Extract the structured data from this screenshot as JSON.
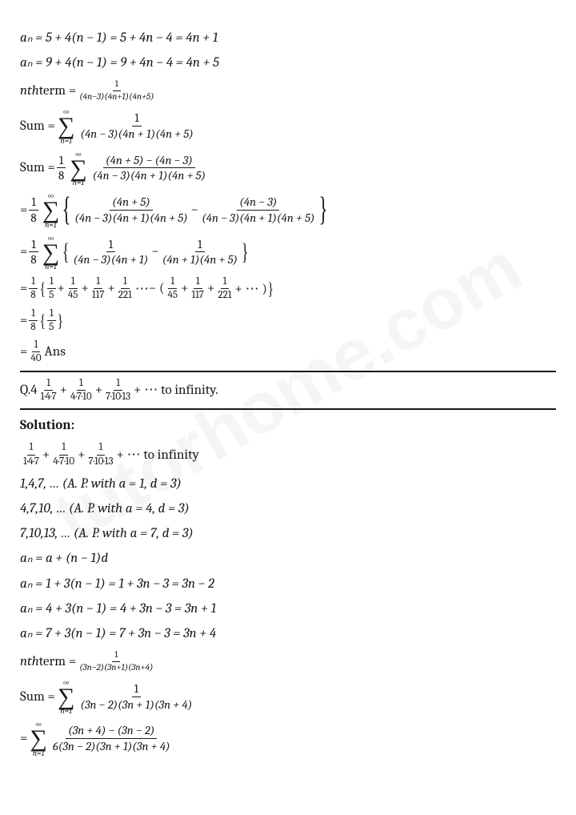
{
  "watermark": "tutorhome.com",
  "t": {
    "l1": "aₙ = 5 + 4(n − 1) = 5 + 4n − 4 = 4n + 1",
    "l2": "aₙ = 9 + 4(n − 1) = 9 + 4n − 4 = 4n + 5",
    "l3_a": "nth",
    "l3_b": " term = ",
    "l3_num": "1",
    "l3_den": "(4n−3)(4n+1)(4n+5)",
    "sum_label": "Sum = ",
    "sum1_num": "1",
    "sum1_den": "(4n − 3)(4n + 1)(4n + 5)",
    "sum2_pre_num": "1",
    "sum2_pre_den": "8",
    "sum2_num": "(4n + 5) − (4n − 3)",
    "sum2_den": "(4n − 3)(4n + 1)(4n + 5)",
    "eq": "= ",
    "s3_f1_num": "(4n + 5)",
    "s3_f1_den": "(4n − 3)(4n + 1)(4n + 5)",
    "minus": " − ",
    "s3_f2_num": "(4n − 3)",
    "s3_f2_den": "(4n − 3)(4n + 1)(4n + 5)",
    "s4_f1_num": "1",
    "s4_f1_den": "(4n − 3)(4n + 1)",
    "s4_f2_num": "1",
    "s4_f2_den": "(4n + 1)(4n + 5)",
    "f_1_8_n": "1",
    "f_1_8_d": "8",
    "f_1_5_n": "1",
    "f_1_5_d": "5",
    "f_1_45_n": "1",
    "f_1_45_d": "45",
    "f_1_117_n": "1",
    "f_1_117_d": "117",
    "f_1_221_n": "1",
    "f_1_221_d": "221",
    "plus": " + ",
    "dots": " ⋯ ",
    "minus_paren": " − (",
    "close_paren_dots": " + ⋯ )",
    "f_1_40_n": "1",
    "f_1_40_d": "40",
    "ans": " Ans",
    "q4": "Q.4 ",
    "q4_f1_n": "1",
    "q4_f1_d": "1·4·7",
    "q4_f2_n": "1",
    "q4_f2_d": "4·7·10",
    "q4_f3_n": "1",
    "q4_f3_d": "7·10·13",
    "to_inf": " + ⋯ to infinity.",
    "to_inf2": " + ⋯ to infinity",
    "solution": "Solution:",
    "ap1": "1,4,7, … (A. P. with a = 1, d = 3)",
    "ap2": "4,7,10, … (A. P. with a = 4, d = 3)",
    "ap3": "7,10,13, … (A. P. with a = 7, d = 3)",
    "an_def": "aₙ = a + (n − 1)d",
    "an1": "aₙ = 1 + 3(n − 1) = 1 + 3n − 3 = 3n − 2",
    "an2": "aₙ = 4 + 3(n − 1) = 4 + 3n − 3 = 3n + 1",
    "an3": "aₙ = 7 + 3(n − 1) = 7 + 3n − 3 = 3n + 4",
    "nth2_num": "1",
    "nth2_den": "(3n−2)(3n+1)(3n+4)",
    "sumB_num": "1",
    "sumB_den": "(3n − 2)(3n + 1)(3n + 4)",
    "sumC_num": "(3n + 4) − (3n − 2)",
    "sumC_den": "6(3n − 2)(3n + 1)(3n + 4)",
    "sigma_top": "∞",
    "sigma_sym": "∑",
    "sigma_bot": "n=1"
  }
}
